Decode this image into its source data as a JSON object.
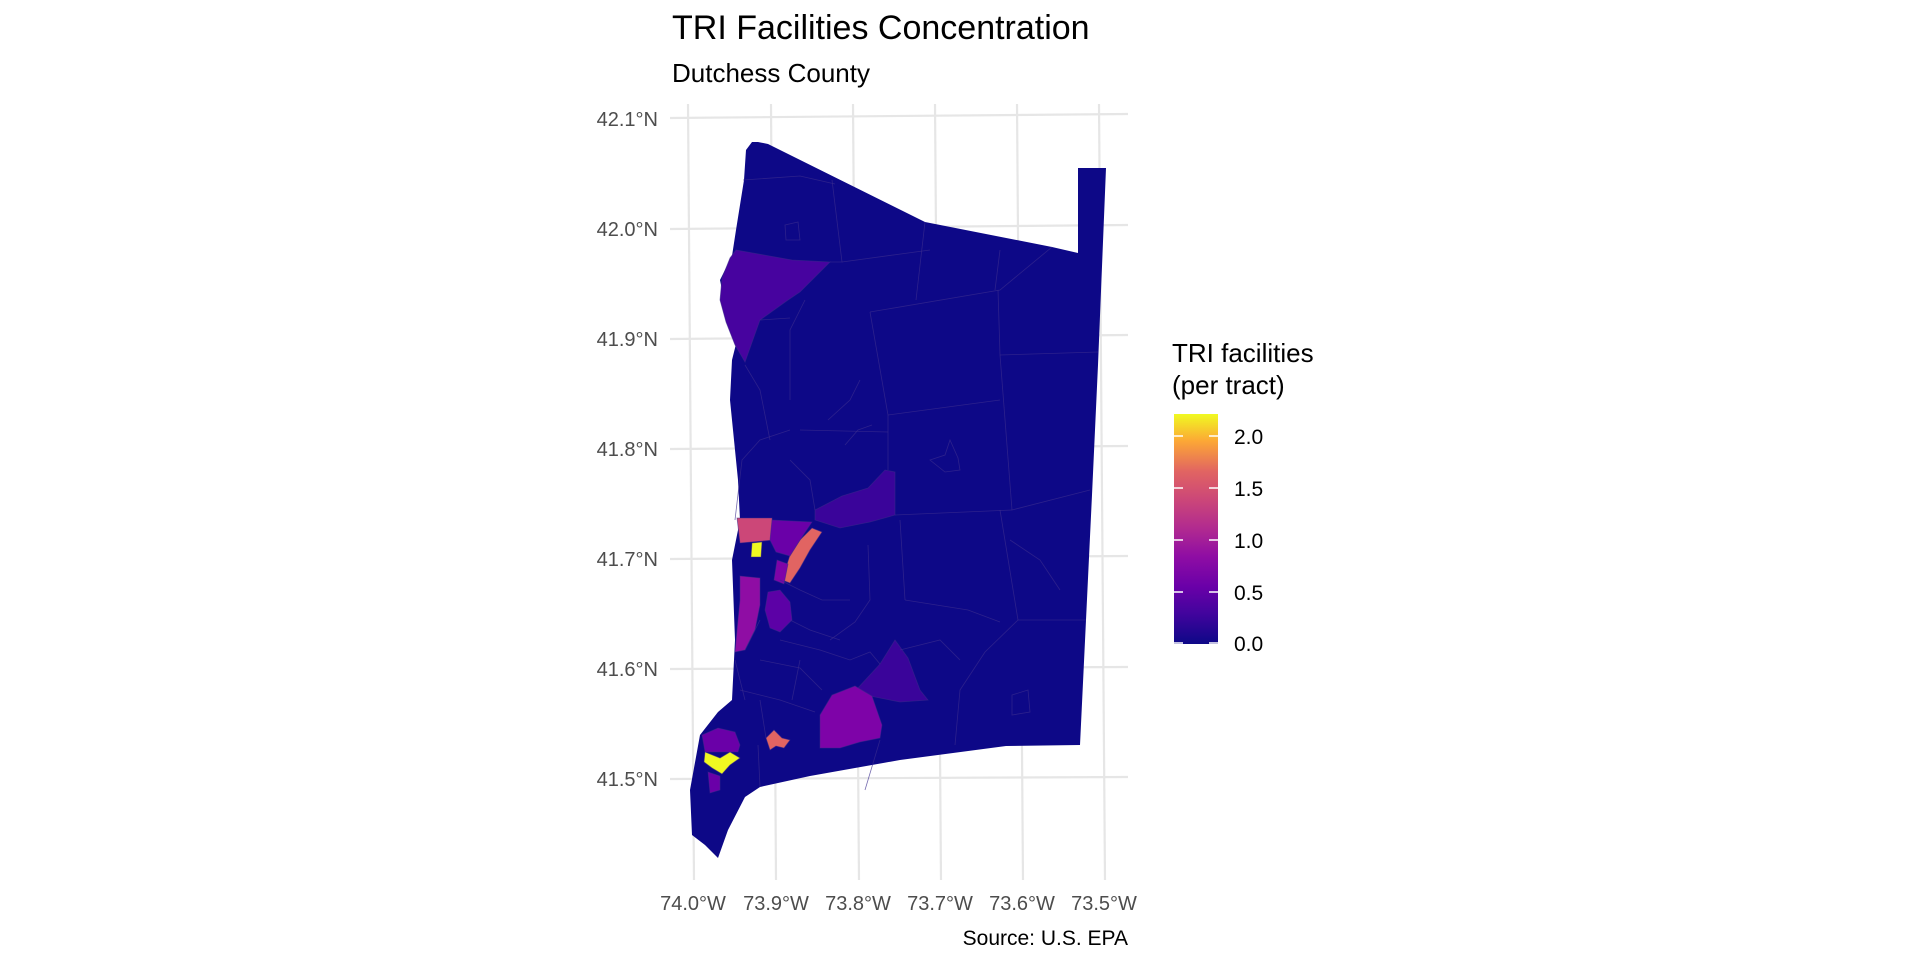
{
  "map": {
    "title": "TRI Facilities Concentration",
    "subtitle": "Dutchess County",
    "caption": "Source: U.S. EPA",
    "region": "Dutchess County",
    "palette": "plasma",
    "colors": {
      "base": "#0d0887",
      "low": "#47039f",
      "mid": "#9c179e",
      "high": "#ed7953",
      "top": "#f0f921",
      "grid": "#e6e6e6",
      "axis_text": "#4d4d4d"
    }
  },
  "axes": {
    "lat_ticks": [
      "42.1°N",
      "42.0°N",
      "41.9°N",
      "41.8°N",
      "41.7°N",
      "41.6°N",
      "41.5°N"
    ],
    "lon_ticks": [
      "74.0°W",
      "73.9°W",
      "73.8°W",
      "73.7°W",
      "73.6°W",
      "73.5°W"
    ]
  },
  "legend": {
    "title_line1": "TRI facilities",
    "title_line2": "(per tract)",
    "range": [
      0,
      2.2
    ],
    "ticks": [
      "2.0",
      "1.5",
      "1.0",
      "0.5",
      "0.0"
    ],
    "tick_values": [
      2.0,
      1.5,
      1.0,
      0.5,
      0.0
    ],
    "placement": "right"
  }
}
